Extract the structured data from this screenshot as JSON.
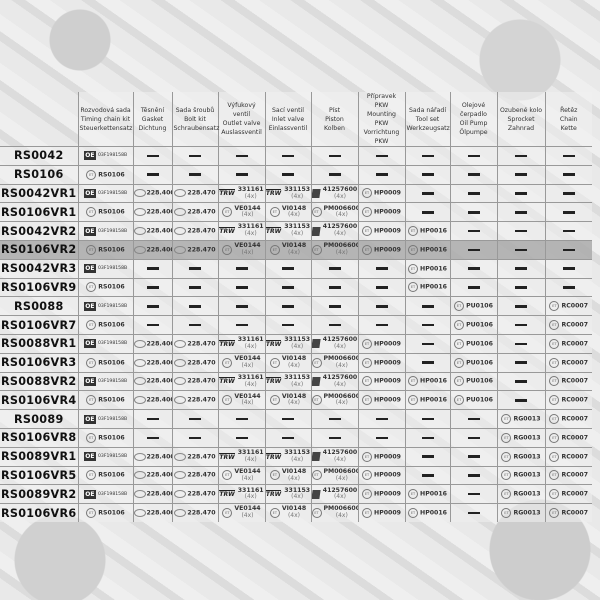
{
  "headers": [
    "",
    "Rozvodová sada\nTiming chain kit\nSteuerkettensatz",
    "Těsnění\nGasket\nDichtung",
    "Sada šroubů\nBolt kit\nSchraubensatz",
    "Výfukový ventil\nOutlet valve\nAuslassventil",
    "Sací ventil\nInlet valve\nEinlassventil",
    "Píst\nPiston\nKolben",
    "Přípravek PKW\nMounting PKW\nVorrichtung PKW",
    "Sada nářadí\nTool set\nWerkzeugsatz",
    "Olejové čerpadlo\nOil Pump\nÖlpumpe",
    "Ozubené kolo\nSprocket\nZahnrad",
    "Řetěz\nChain\nKette"
  ],
  "highlighted_row": "RS0106VR2",
  "brand_icons": {
    "oe": "oe-logo",
    "et": "et-logo",
    "el": "elring-logo",
    "trw": "trw-logo",
    "ks": "ks-piston-logo"
  },
  "rows": [
    {
      "name": "RS0042",
      "cells": [
        {
          "b": "oe",
          "c": "03F198158B"
        },
        "—",
        "—",
        "—",
        "—",
        "—",
        "—",
        "—",
        "—",
        "—",
        "—"
      ]
    },
    {
      "name": "RS0106",
      "cells": [
        {
          "b": "et",
          "c": "RS0106"
        },
        "—",
        "—",
        "—",
        "—",
        "—",
        "—",
        "—",
        "—",
        "—",
        "—"
      ]
    },
    {
      "name": "RS0042VR1",
      "cells": [
        {
          "b": "oe",
          "c": "03F198158B"
        },
        {
          "b": "el",
          "c": "228.400"
        },
        {
          "b": "el",
          "c": "228.470"
        },
        {
          "b": "trw",
          "c": "331161",
          "q": "(4x)"
        },
        {
          "b": "trw",
          "c": "331153",
          "q": "(4x)"
        },
        {
          "b": "ks",
          "c": "41257600",
          "q": "(4x)"
        },
        {
          "b": "et",
          "c": "HP0009"
        },
        "—",
        "—",
        "—",
        "—"
      ]
    },
    {
      "name": "RS0106VR1",
      "cells": [
        {
          "b": "et",
          "c": "RS0106"
        },
        {
          "b": "el",
          "c": "228.400"
        },
        {
          "b": "el",
          "c": "228.470"
        },
        {
          "b": "et",
          "c": "VE0144",
          "q": "(4x)"
        },
        {
          "b": "et",
          "c": "VI0148",
          "q": "(4x)"
        },
        {
          "b": "et",
          "c": "PM006600",
          "q": "(4x)"
        },
        {
          "b": "et",
          "c": "HP0009"
        },
        "—",
        "—",
        "—",
        "—"
      ]
    },
    {
      "name": "RS0042VR2",
      "cells": [
        {
          "b": "oe",
          "c": "03F198158B"
        },
        {
          "b": "el",
          "c": "228.400"
        },
        {
          "b": "el",
          "c": "228.470"
        },
        {
          "b": "trw",
          "c": "331161",
          "q": "(4x)"
        },
        {
          "b": "trw",
          "c": "331153",
          "q": "(4x)"
        },
        {
          "b": "ks",
          "c": "41257600",
          "q": "(4x)"
        },
        {
          "b": "et",
          "c": "HP0009"
        },
        {
          "b": "et",
          "c": "HP0016"
        },
        "—",
        "—",
        "—"
      ]
    },
    {
      "name": "RS0106VR2",
      "cells": [
        {
          "b": "et",
          "c": "RS0106"
        },
        {
          "b": "el",
          "c": "228.400"
        },
        {
          "b": "el",
          "c": "228.470"
        },
        {
          "b": "et",
          "c": "VE0144",
          "q": "(4x)"
        },
        {
          "b": "et",
          "c": "VI0148",
          "q": "(4x)"
        },
        {
          "b": "et",
          "c": "PM006600",
          "q": "(4x)"
        },
        {
          "b": "et",
          "c": "HP0009"
        },
        {
          "b": "et",
          "c": "HP0016"
        },
        "—",
        "—",
        "—"
      ]
    },
    {
      "name": "RS0042VR3",
      "cells": [
        {
          "b": "oe",
          "c": "03F198158B"
        },
        "—",
        "—",
        "—",
        "—",
        "—",
        "—",
        {
          "b": "et",
          "c": "HP0016"
        },
        "—",
        "—",
        "—"
      ]
    },
    {
      "name": "RS0106VR9",
      "cells": [
        {
          "b": "et",
          "c": "RS0106"
        },
        "—",
        "—",
        "—",
        "—",
        "—",
        "—",
        {
          "b": "et",
          "c": "HP0016"
        },
        "—",
        "—",
        "—"
      ]
    },
    {
      "name": "RS0088",
      "cells": [
        {
          "b": "oe",
          "c": "03F198158B"
        },
        "—",
        "—",
        "—",
        "—",
        "—",
        "—",
        "—",
        {
          "b": "et",
          "c": "PU0106"
        },
        "—",
        {
          "b": "et",
          "c": "RC0007"
        }
      ]
    },
    {
      "name": "RS0106VR7",
      "cells": [
        {
          "b": "et",
          "c": "RS0106"
        },
        "—",
        "—",
        "—",
        "—",
        "—",
        "—",
        "—",
        {
          "b": "et",
          "c": "PU0106"
        },
        "—",
        {
          "b": "et",
          "c": "RC0007"
        }
      ]
    },
    {
      "name": "RS0088VR1",
      "cells": [
        {
          "b": "oe",
          "c": "03F198158B"
        },
        {
          "b": "el",
          "c": "228.400"
        },
        {
          "b": "el",
          "c": "228.470"
        },
        {
          "b": "trw",
          "c": "331161",
          "q": "(4x)"
        },
        {
          "b": "trw",
          "c": "331153",
          "q": "(4x)"
        },
        {
          "b": "ks",
          "c": "41257600",
          "q": "(4x)"
        },
        {
          "b": "et",
          "c": "HP0009"
        },
        "—",
        {
          "b": "et",
          "c": "PU0106"
        },
        "—",
        {
          "b": "et",
          "c": "RC0007"
        }
      ]
    },
    {
      "name": "RS0106VR3",
      "cells": [
        {
          "b": "et",
          "c": "RS0106"
        },
        {
          "b": "el",
          "c": "228.400"
        },
        {
          "b": "el",
          "c": "228.470"
        },
        {
          "b": "et",
          "c": "VE0144",
          "q": "(4x)"
        },
        {
          "b": "et",
          "c": "VI0148",
          "q": "(4x)"
        },
        {
          "b": "et",
          "c": "PM006600",
          "q": "(4x)"
        },
        {
          "b": "et",
          "c": "HP0009"
        },
        "—",
        {
          "b": "et",
          "c": "PU0106"
        },
        "—",
        {
          "b": "et",
          "c": "RC0007"
        }
      ]
    },
    {
      "name": "RS0088VR2",
      "cells": [
        {
          "b": "oe",
          "c": "03F198158B"
        },
        {
          "b": "el",
          "c": "228.400"
        },
        {
          "b": "el",
          "c": "228.470"
        },
        {
          "b": "trw",
          "c": "331161",
          "q": "(4x)"
        },
        {
          "b": "trw",
          "c": "331153",
          "q": "(4x)"
        },
        {
          "b": "ks",
          "c": "41257600",
          "q": "(4x)"
        },
        {
          "b": "et",
          "c": "HP0009"
        },
        {
          "b": "et",
          "c": "HP0016"
        },
        {
          "b": "et",
          "c": "PU0106"
        },
        "—",
        {
          "b": "et",
          "c": "RC0007"
        }
      ]
    },
    {
      "name": "RS0106VR4",
      "cells": [
        {
          "b": "et",
          "c": "RS0106"
        },
        {
          "b": "el",
          "c": "228.400"
        },
        {
          "b": "el",
          "c": "228.470"
        },
        {
          "b": "et",
          "c": "VE0144",
          "q": "(4x)"
        },
        {
          "b": "et",
          "c": "VI0148",
          "q": "(4x)"
        },
        {
          "b": "et",
          "c": "PM006600",
          "q": "(4x)"
        },
        {
          "b": "et",
          "c": "HP0009"
        },
        {
          "b": "et",
          "c": "HP0016"
        },
        {
          "b": "et",
          "c": "PU0106"
        },
        "—",
        {
          "b": "et",
          "c": "RC0007"
        }
      ]
    },
    {
      "name": "RS0089",
      "cells": [
        {
          "b": "oe",
          "c": "03F198158B"
        },
        "—",
        "—",
        "—",
        "—",
        "—",
        "—",
        "—",
        "—",
        {
          "b": "et",
          "c": "RG0013"
        },
        {
          "b": "et",
          "c": "RC0007"
        }
      ]
    },
    {
      "name": "RS0106VR8",
      "cells": [
        {
          "b": "et",
          "c": "RS0106"
        },
        "—",
        "—",
        "—",
        "—",
        "—",
        "—",
        "—",
        "—",
        {
          "b": "et",
          "c": "RG0013"
        },
        {
          "b": "et",
          "c": "RC0007"
        }
      ]
    },
    {
      "name": "RS0089VR1",
      "cells": [
        {
          "b": "oe",
          "c": "03F198158B"
        },
        {
          "b": "el",
          "c": "228.400"
        },
        {
          "b": "el",
          "c": "228.470"
        },
        {
          "b": "trw",
          "c": "331161",
          "q": "(4x)"
        },
        {
          "b": "trw",
          "c": "331153",
          "q": "(4x)"
        },
        {
          "b": "ks",
          "c": "41257600",
          "q": "(4x)"
        },
        {
          "b": "et",
          "c": "HP0009"
        },
        "—",
        "—",
        {
          "b": "et",
          "c": "RG0013"
        },
        {
          "b": "et",
          "c": "RC0007"
        }
      ]
    },
    {
      "name": "RS0106VR5",
      "cells": [
        {
          "b": "et",
          "c": "RS0106"
        },
        {
          "b": "el",
          "c": "228.400"
        },
        {
          "b": "el",
          "c": "228.470"
        },
        {
          "b": "et",
          "c": "VE0144",
          "q": "(4x)"
        },
        {
          "b": "et",
          "c": "VI0148",
          "q": "(4x)"
        },
        {
          "b": "et",
          "c": "PM006600",
          "q": "(4x)"
        },
        {
          "b": "et",
          "c": "HP0009"
        },
        "—",
        "—",
        {
          "b": "et",
          "c": "RG0013"
        },
        {
          "b": "et",
          "c": "RC0007"
        }
      ]
    },
    {
      "name": "RS0089VR2",
      "cells": [
        {
          "b": "oe",
          "c": "03F198158B"
        },
        {
          "b": "el",
          "c": "228.400"
        },
        {
          "b": "el",
          "c": "228.470"
        },
        {
          "b": "trw",
          "c": "331161",
          "q": "(4x)"
        },
        {
          "b": "trw",
          "c": "331153",
          "q": "(4x)"
        },
        {
          "b": "ks",
          "c": "41257600",
          "q": "(4x)"
        },
        {
          "b": "et",
          "c": "HP0009"
        },
        {
          "b": "et",
          "c": "HP0016"
        },
        "—",
        {
          "b": "et",
          "c": "RG0013"
        },
        {
          "b": "et",
          "c": "RC0007"
        }
      ]
    },
    {
      "name": "RS0106VR6",
      "cells": [
        {
          "b": "et",
          "c": "RS0106"
        },
        {
          "b": "el",
          "c": "228.400"
        },
        {
          "b": "el",
          "c": "228.470"
        },
        {
          "b": "et",
          "c": "VE0144",
          "q": "(4x)"
        },
        {
          "b": "et",
          "c": "VI0148",
          "q": "(4x)"
        },
        {
          "b": "et",
          "c": "PM006600",
          "q": "(4x)"
        },
        {
          "b": "et",
          "c": "HP0009"
        },
        {
          "b": "et",
          "c": "HP0016"
        },
        "—",
        {
          "b": "et",
          "c": "RG0013"
        },
        {
          "b": "et",
          "c": "RC0007"
        }
      ]
    }
  ]
}
